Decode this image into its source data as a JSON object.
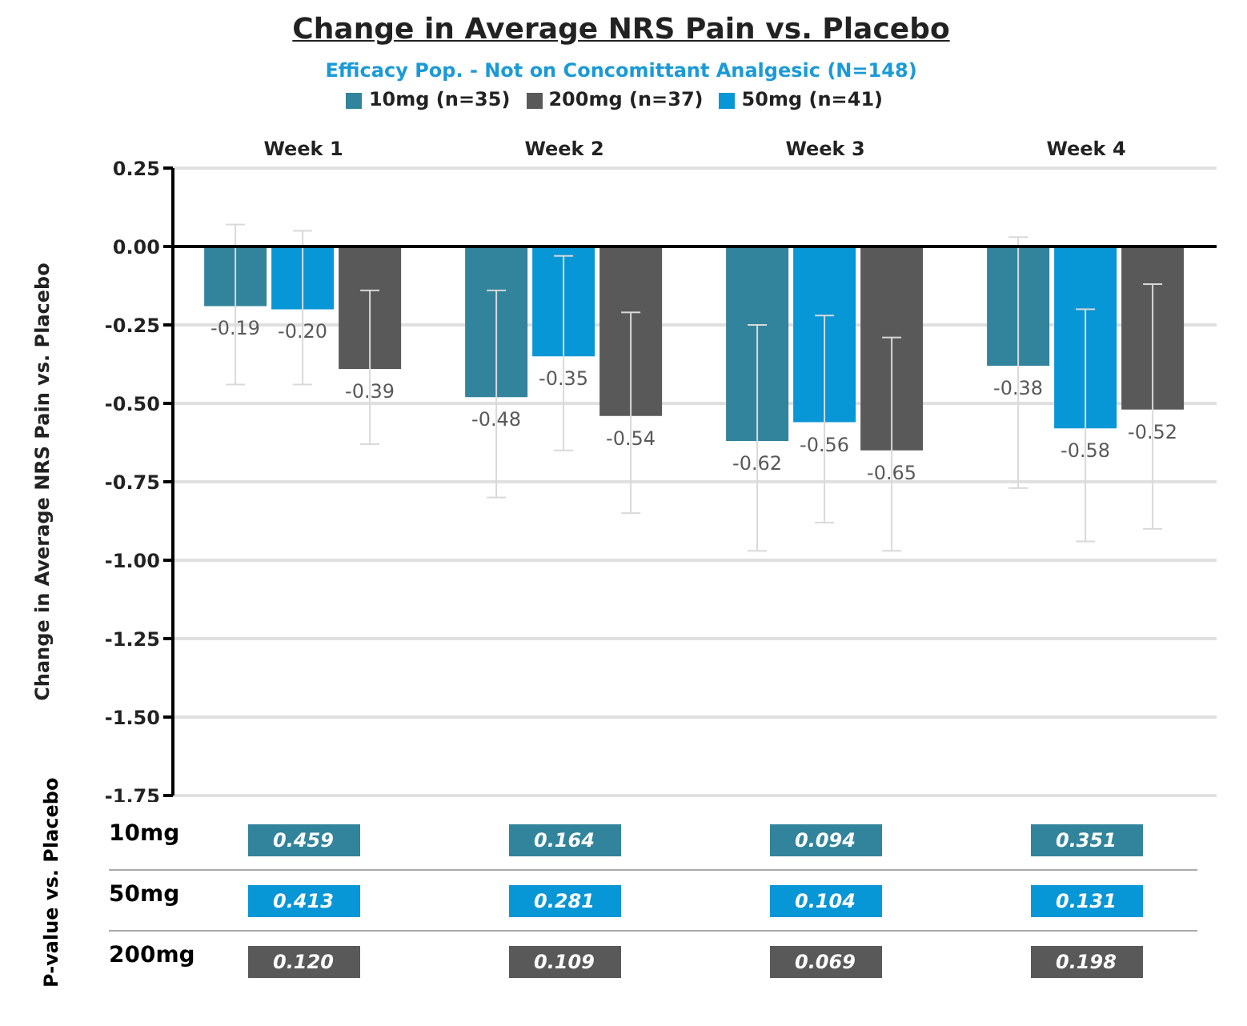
{
  "chart_data": {
    "type": "bar",
    "title": "Change in Average NRS Pain vs. Placebo",
    "subtitle": "Efficacy Pop. - Not on Concomittant Analgesic (N=148)",
    "ylabel": "Change in Average NRS Pain vs. Placebo",
    "categories": [
      "Week 1",
      "Week 2",
      "Week 3",
      "Week 4"
    ],
    "series": [
      {
        "name": "10mg (n=35)",
        "color": "#31849b",
        "values": [
          -0.19,
          -0.48,
          -0.62,
          -0.38
        ],
        "value_labels": [
          "-0.19",
          "-0.48",
          "-0.62",
          "-0.38"
        ],
        "errors": [
          [
            -0.44,
            0.07
          ],
          [
            -0.8,
            -0.14
          ],
          [
            -0.97,
            -0.25
          ],
          [
            -0.77,
            0.03
          ]
        ]
      },
      {
        "name": "50mg (n=41)",
        "color": "#0796d6",
        "values": [
          -0.2,
          -0.35,
          -0.56,
          -0.58
        ],
        "value_labels": [
          "-0.20",
          "-0.35",
          "-0.56",
          "-0.58"
        ],
        "errors": [
          [
            -0.44,
            0.05
          ],
          [
            -0.65,
            -0.03
          ],
          [
            -0.88,
            -0.22
          ],
          [
            -0.94,
            -0.2
          ]
        ]
      },
      {
        "name": "200mg (n=37)",
        "color": "#595959",
        "values": [
          -0.39,
          -0.54,
          -0.65,
          -0.52
        ],
        "value_labels": [
          "-0.39",
          "-0.54",
          "-0.65",
          "-0.52"
        ],
        "errors": [
          [
            -0.63,
            -0.14
          ],
          [
            -0.85,
            -0.21
          ],
          [
            -0.97,
            -0.29
          ],
          [
            -0.9,
            -0.12
          ]
        ]
      }
    ],
    "ylim": [
      -1.75,
      0.25
    ],
    "yticks": [
      {
        "value": 0.25,
        "label": "0.25"
      },
      {
        "value": 0,
        "label": "0.00"
      },
      {
        "value": -0.25,
        "label": "-0.25"
      },
      {
        "value": -0.5,
        "label": "-0.50"
      },
      {
        "value": -0.75,
        "label": "-0.75"
      },
      {
        "value": -1,
        "label": "-1.00"
      },
      {
        "value": -1.25,
        "label": "-1.25"
      },
      {
        "value": -1.5,
        "label": "-1.50"
      },
      {
        "value": -1.75,
        "label": "-1.75"
      }
    ],
    "ref_lines": [
      {
        "axis": "y",
        "value": 0,
        "color": "#000000"
      }
    ],
    "grid": "y",
    "legend": "top",
    "annotations": [
      "P-value vs. Placebo",
      "10mg",
      "0.459",
      "0.164",
      "0.094",
      "0.351",
      "50mg",
      "0.413",
      "0.281",
      "0.104",
      "0.131",
      "200mg",
      "0.120",
      "0.109",
      "0.069",
      "0.198"
    ]
  }
}
